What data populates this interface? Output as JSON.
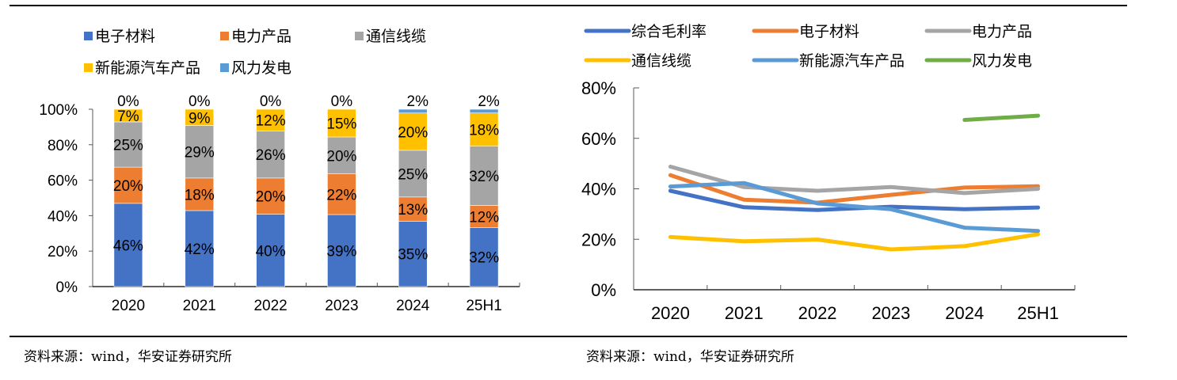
{
  "sources": {
    "left": "资料来源：wind，华安证券研究所",
    "right": "资料来源：wind，华安证券研究所"
  },
  "chart_data": [
    {
      "type": "bar",
      "stacked": true,
      "normalized": true,
      "title": "",
      "xlabel": "",
      "ylabel": "",
      "ylim": [
        0,
        100
      ],
      "yticks": [
        "0%",
        "20%",
        "40%",
        "60%",
        "80%",
        "100%"
      ],
      "categories": [
        "2020",
        "2021",
        "2022",
        "2023",
        "2024",
        "25H1"
      ],
      "legend_position": "top",
      "grid": false,
      "series": [
        {
          "name": "电子材料",
          "color": "#4472C4",
          "values": [
            46,
            42,
            40,
            39,
            35,
            32
          ],
          "labels": [
            "46%",
            "42%",
            "40%",
            "39%",
            "35%",
            "32%"
          ]
        },
        {
          "name": "电力产品",
          "color": "#ED7D31",
          "values": [
            20,
            18,
            20,
            22,
            13,
            12
          ],
          "labels": [
            "20%",
            "18%",
            "20%",
            "22%",
            "13%",
            "12%"
          ]
        },
        {
          "name": "通信线缆",
          "color": "#A5A5A5",
          "values": [
            25,
            29,
            26,
            20,
            25,
            32
          ],
          "labels": [
            "25%",
            "29%",
            "26%",
            "20%",
            "25%",
            "32%"
          ]
        },
        {
          "name": "新能源汽车产品",
          "color": "#FFC000",
          "values": [
            7,
            9,
            12,
            15,
            20,
            18
          ],
          "labels": [
            "7%",
            "9%",
            "12%",
            "15%",
            "20%",
            "18%"
          ]
        },
        {
          "name": "风力发电",
          "color": "#5B9BD5",
          "values": [
            0,
            0,
            0,
            0,
            2,
            2
          ],
          "labels": [
            "0%",
            "0%",
            "0%",
            "0%",
            "2%",
            "2%"
          ]
        }
      ]
    },
    {
      "type": "line",
      "title": "",
      "xlabel": "",
      "ylabel": "",
      "ylim": [
        0,
        80
      ],
      "yticks": [
        "0%",
        "20%",
        "40%",
        "60%",
        "80%"
      ],
      "categories": [
        "2020",
        "2021",
        "2022",
        "2023",
        "2024",
        "25H1"
      ],
      "legend_position": "top",
      "grid": false,
      "series": [
        {
          "name": "综合毛利率",
          "color": "#4472C4",
          "values": [
            39.2,
            32.7,
            31.6,
            32.9,
            31.9,
            32.6
          ]
        },
        {
          "name": "电子材料",
          "color": "#ED7D31",
          "values": [
            45.4,
            35.7,
            34.5,
            37.6,
            40.5,
            41.0
          ]
        },
        {
          "name": "电力产品",
          "color": "#A5A5A5",
          "values": [
            48.8,
            40.7,
            39.2,
            40.7,
            38.3,
            40.0
          ]
        },
        {
          "name": "通信线缆",
          "color": "#FFC000",
          "values": [
            20.9,
            19.2,
            19.9,
            16.0,
            17.3,
            22.0
          ]
        },
        {
          "name": "新能源汽车产品",
          "color": "#5B9BD5",
          "values": [
            40.9,
            42.3,
            34.2,
            31.9,
            24.6,
            23.3
          ]
        },
        {
          "name": "风力发电",
          "color": "#70AD47",
          "values": [
            null,
            null,
            null,
            null,
            67.3,
            69.0
          ]
        }
      ]
    }
  ]
}
